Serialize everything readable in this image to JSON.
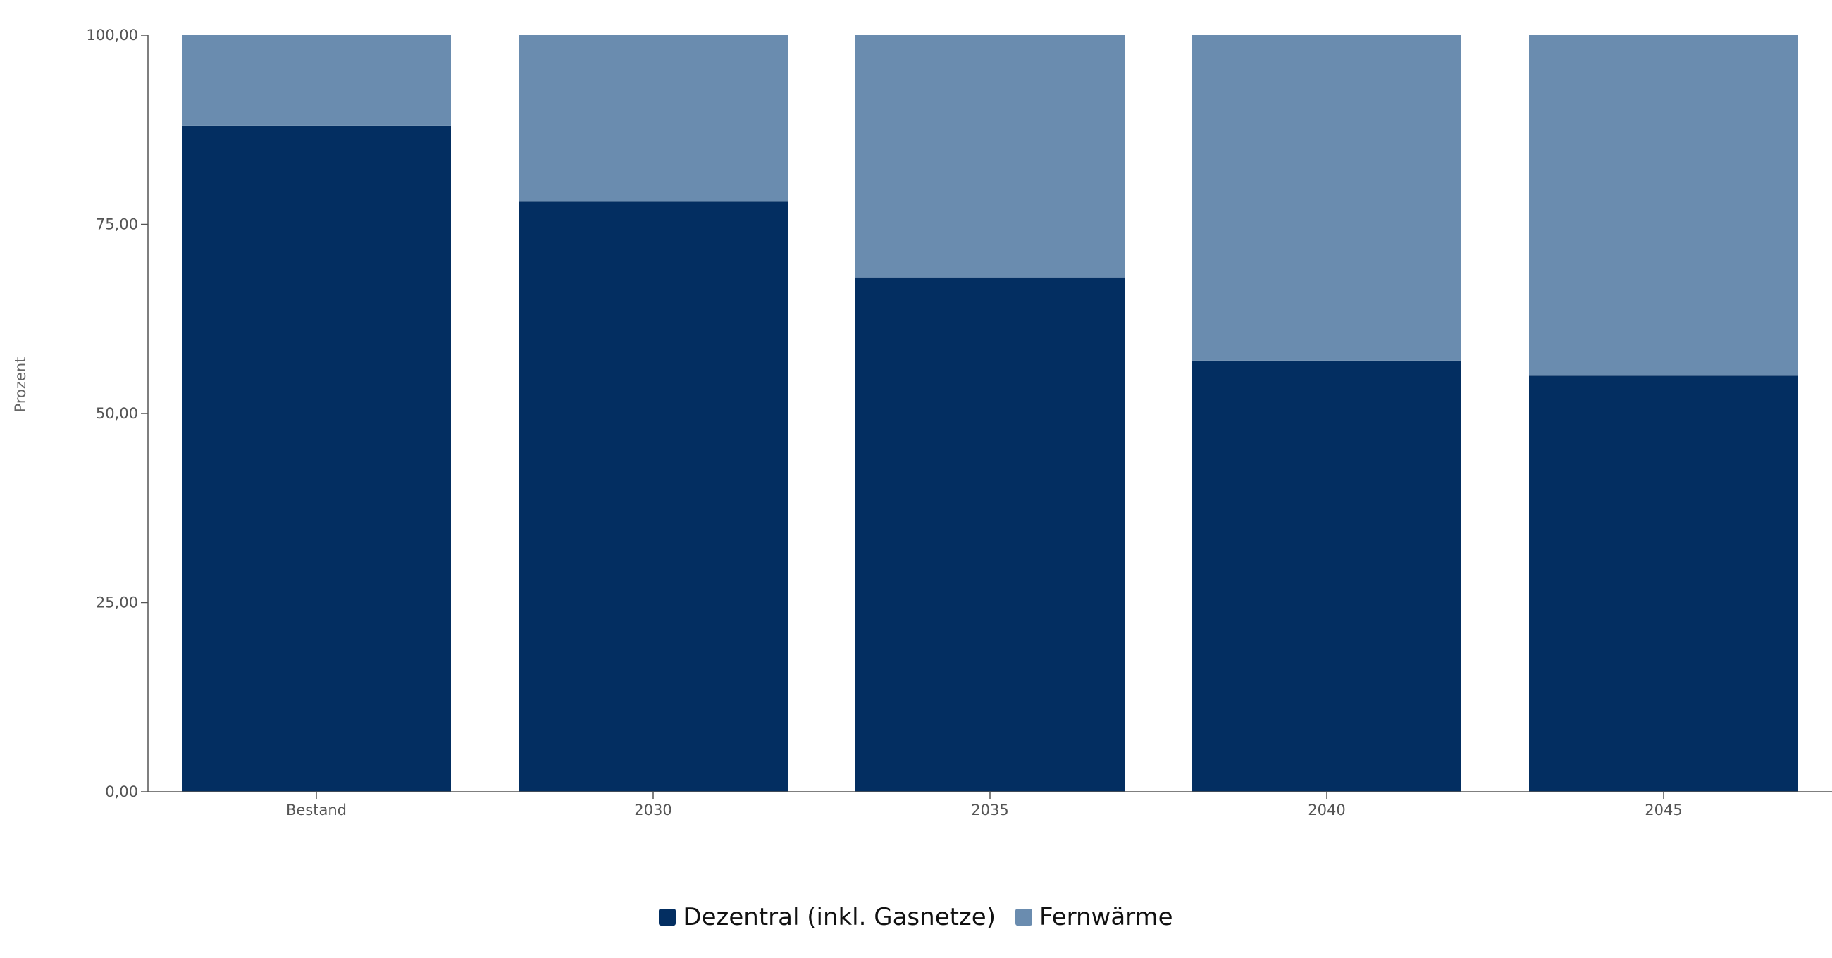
{
  "chart_data": {
    "type": "bar",
    "stacked": true,
    "categories": [
      "Bestand",
      "2030",
      "2035",
      "2040",
      "2045"
    ],
    "series": [
      {
        "name": "Dezentral (inkl. Gasnetze)",
        "color": "#032e61",
        "values": [
          88,
          78,
          68,
          57,
          55
        ]
      },
      {
        "name": "Fernwärme",
        "color": "#6a8caf",
        "values": [
          12,
          22,
          32,
          43,
          45
        ]
      }
    ],
    "ylabel": "Prozent",
    "ylim": [
      0,
      100
    ],
    "yticks": [
      0,
      25,
      50,
      75,
      100
    ],
    "ytick_labels": [
      "0,00",
      "25,00",
      "50,00",
      "75,00",
      "100,00"
    ],
    "grid": false,
    "legend_position": "bottom-center"
  }
}
